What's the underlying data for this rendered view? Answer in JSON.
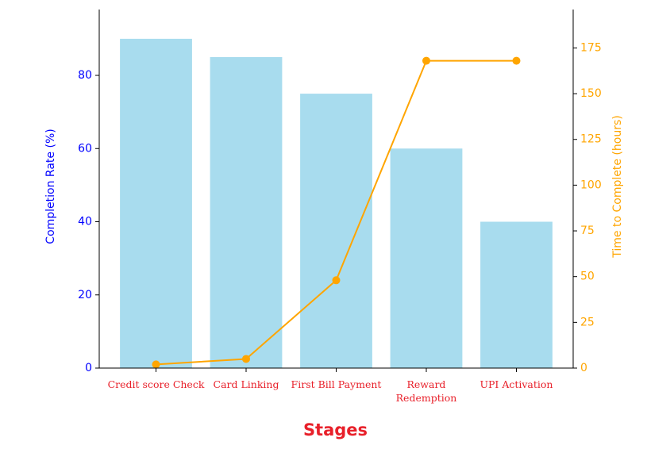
{
  "chart_data": {
    "type": "bar-line",
    "x_label": "Stages",
    "y_label": "Completion Rate (%)",
    "y2_label": "Time to Complete (hours)",
    "categories": [
      "Credit score Check",
      "Card Linking",
      "First Bill Payment",
      "Reward\nRedemption",
      "UPI Activation"
    ],
    "series": [
      {
        "type": "bar",
        "color": "#a8dcee",
        "values": [
          90,
          85,
          75,
          60,
          40
        ]
      },
      {
        "type": "line",
        "axis": "y2",
        "color": "#ffa500",
        "values": [
          2,
          5,
          48,
          168,
          168
        ]
      }
    ],
    "ylim": [
      0,
      98
    ],
    "yticks": [
      0,
      20,
      40,
      60,
      80
    ],
    "y2lim": [
      0,
      196
    ],
    "y2ticks": [
      0,
      25,
      50,
      75,
      100,
      125,
      150,
      175
    ]
  }
}
